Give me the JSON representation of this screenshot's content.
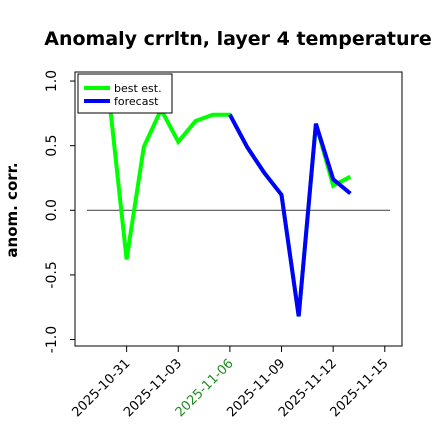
{
  "chart_data": {
    "type": "line",
    "title": "Anomaly crrltn, layer 4 temperature",
    "xlabel": "",
    "ylabel": "anom. corr.",
    "ylim": [
      -1.05,
      1.07
    ],
    "xlim": [
      "2025-10-28",
      "2025-11-16"
    ],
    "y_ticks": [
      -1.0,
      -0.5,
      0.0,
      0.5,
      1.0
    ],
    "y_tick_labels": [
      "-1.0",
      "-0.5",
      "0.0",
      "0.5",
      "1.0"
    ],
    "x_tick_labels": [
      "2025-10-31",
      "2025-11-03",
      "2025-11-06",
      "2025-11-09",
      "2025-11-12",
      "2025-11-15"
    ],
    "highlight_tick": "2025-11-06",
    "reference_line": 0.0,
    "grid": false,
    "legend_position": "top-left",
    "series": [
      {
        "name": "best est.",
        "color": "#00ff00",
        "x": [
          "2025-10-30",
          "2025-10-31",
          "2025-11-01",
          "2025-11-02",
          "2025-11-03",
          "2025-11-04",
          "2025-11-05",
          "2025-11-06",
          "2025-11-07",
          "2025-11-08",
          "2025-11-09",
          "2025-11-10",
          "2025-11-11",
          "2025-11-12",
          "2025-11-13"
        ],
        "values": [
          0.85,
          -0.38,
          0.49,
          0.78,
          0.53,
          0.69,
          0.74,
          0.74,
          0.49,
          0.29,
          0.12,
          -0.82,
          0.67,
          0.19,
          0.26
        ]
      },
      {
        "name": "forecast",
        "color": "#0000ff",
        "x": [
          "2025-11-06",
          "2025-11-07",
          "2025-11-08",
          "2025-11-09",
          "2025-11-10",
          "2025-11-11",
          "2025-11-12",
          "2025-11-13"
        ],
        "values": [
          0.74,
          0.49,
          0.29,
          0.12,
          -0.82,
          0.67,
          0.24,
          0.13
        ]
      }
    ]
  }
}
